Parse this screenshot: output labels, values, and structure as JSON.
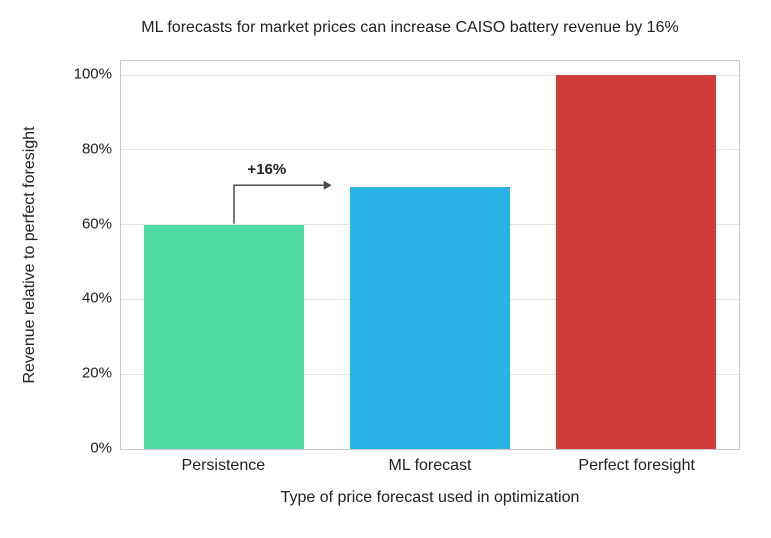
{
  "chart_data": {
    "type": "bar",
    "title": "ML forecasts for market prices can increase CAISO battery revenue by 16%",
    "xlabel": "Type of price forecast used in optimization",
    "ylabel": "Revenue relative to perfect foresight",
    "categories": [
      "Persistence",
      "ML forecast",
      "Perfect foresight"
    ],
    "values": [
      60,
      70,
      100
    ],
    "bar_colors": [
      "#4fdca4",
      "#29b2e5",
      "#cd3d35"
    ],
    "yticks": [
      0,
      20,
      40,
      60,
      80,
      100
    ],
    "ytick_labels": [
      "0%",
      "20%",
      "40%",
      "60%",
      "80%",
      "100%"
    ],
    "ylim": [
      0,
      105
    ],
    "grid": "horizontal",
    "legend": "none",
    "annotation": {
      "label": "+16%",
      "from_category": "Persistence",
      "to_category": "ML forecast",
      "from_index": 0,
      "to_index": 1
    }
  }
}
